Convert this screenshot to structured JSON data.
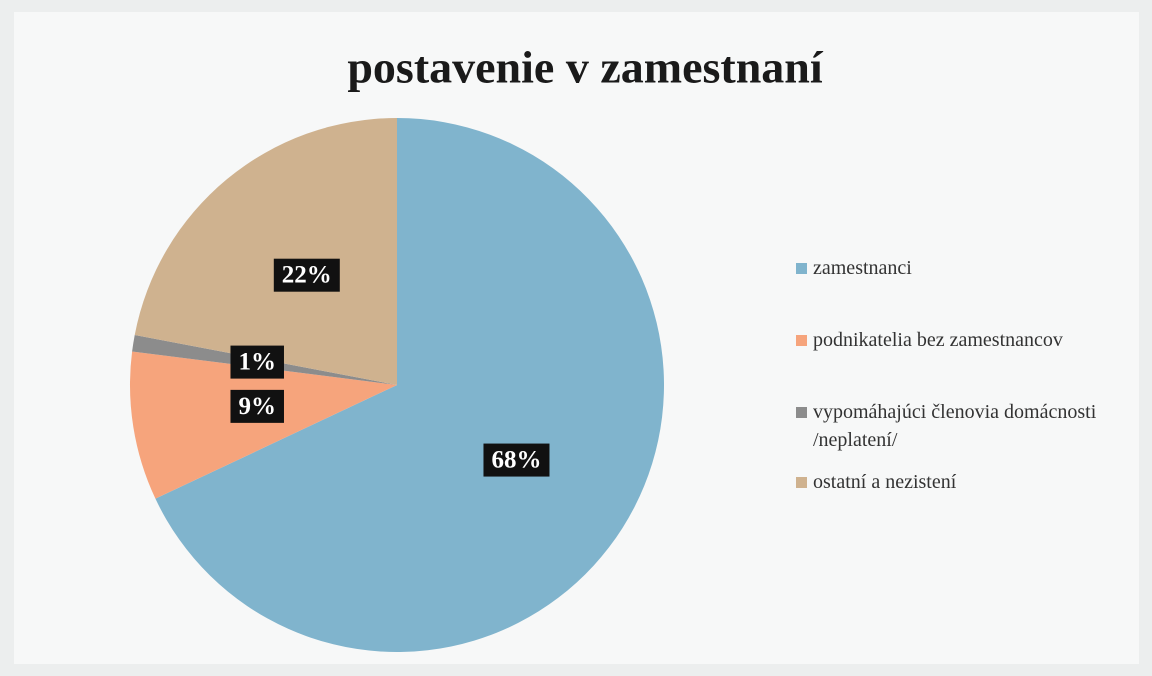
{
  "chart_data": {
    "type": "pie",
    "title": "postavenie v zamestnaní",
    "categories": [
      "zamestnanci",
      "podnikatelia bez zamestnancov",
      "vypomáhajúci členovia domácnosti /neplatení/",
      "ostatní a nezistení"
    ],
    "values": [
      68,
      9,
      1,
      22
    ],
    "value_labels": [
      "68%",
      "9%",
      "1%",
      "22%"
    ],
    "colors": [
      "#80b4cd",
      "#f6a47c",
      "#8c8c8c",
      "#cfb28f"
    ],
    "start_angle": 0,
    "direction": "clockwise",
    "legend": "right"
  }
}
